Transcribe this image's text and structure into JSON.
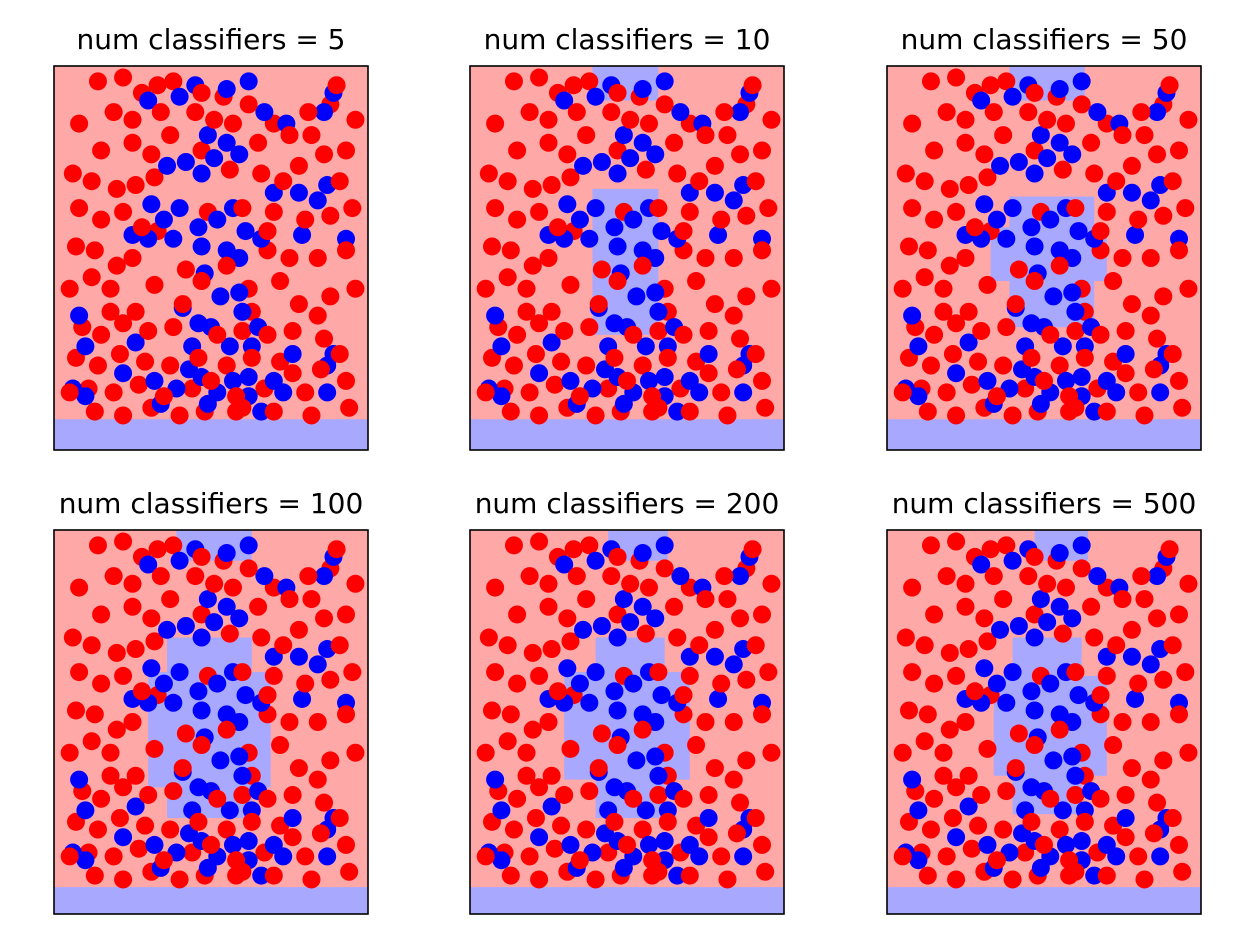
{
  "figure": {
    "background": "#ffffff",
    "colors": {
      "class_a_region": "#ffa8a8",
      "class_b_region": "#a8a8ff",
      "class_a_points": "#ff0000",
      "class_b_points": "#0000ff",
      "frame": "#000000"
    }
  },
  "chart_data": [
    {
      "type": "scatter",
      "title": "num classifiers = 5",
      "axes_visible": false,
      "grid": false,
      "legend": "none",
      "xlim": [
        0,
        1
      ],
      "ylim": [
        0,
        1
      ],
      "decision_regions": [
        {
          "class": "b",
          "x": [
            0.0,
            1.0
          ],
          "y": [
            0.0,
            0.08
          ]
        }
      ]
    },
    {
      "type": "scatter",
      "title": "num classifiers = 10",
      "axes_visible": false,
      "grid": false,
      "legend": "none",
      "xlim": [
        0,
        1
      ],
      "ylim": [
        0,
        1
      ],
      "decision_regions": [
        {
          "class": "b",
          "x": [
            0.0,
            1.0
          ],
          "y": [
            0.0,
            0.08
          ]
        },
        {
          "class": "b",
          "x": [
            0.39,
            0.6
          ],
          "y": [
            0.91,
            1.0
          ]
        },
        {
          "class": "b",
          "x": [
            0.39,
            0.6
          ],
          "y": [
            0.3,
            0.68
          ]
        }
      ]
    },
    {
      "type": "scatter",
      "title": "num classifiers = 50",
      "axes_visible": false,
      "grid": false,
      "legend": "none",
      "xlim": [
        0,
        1
      ],
      "ylim": [
        0,
        1
      ],
      "decision_regions": [
        {
          "class": "b",
          "x": [
            0.0,
            1.0
          ],
          "y": [
            0.0,
            0.08
          ]
        },
        {
          "class": "b",
          "x": [
            0.39,
            0.63
          ],
          "y": [
            0.91,
            1.0
          ]
        },
        {
          "class": "b",
          "x": [
            0.39,
            0.66
          ],
          "y": [
            0.32,
            0.66
          ]
        },
        {
          "class": "b",
          "x": [
            0.33,
            0.7
          ],
          "y": [
            0.44,
            0.58
          ]
        }
      ]
    },
    {
      "type": "scatter",
      "title": "num classifiers = 100",
      "axes_visible": false,
      "grid": false,
      "legend": "none",
      "xlim": [
        0,
        1
      ],
      "ylim": [
        0,
        1
      ],
      "decision_regions": [
        {
          "class": "b",
          "x": [
            0.0,
            1.0
          ],
          "y": [
            0.0,
            0.07
          ]
        },
        {
          "class": "b",
          "x": [
            0.39,
            0.63
          ],
          "y": [
            0.92,
            1.0
          ]
        },
        {
          "class": "b",
          "x": [
            0.3,
            0.69
          ],
          "y": [
            0.33,
            0.63
          ]
        },
        {
          "class": "b",
          "x": [
            0.36,
            0.63
          ],
          "y": [
            0.25,
            0.72
          ]
        }
      ]
    },
    {
      "type": "scatter",
      "title": "num classifiers = 200",
      "axes_visible": false,
      "grid": false,
      "legend": "none",
      "xlim": [
        0,
        1
      ],
      "ylim": [
        0,
        1
      ],
      "decision_regions": [
        {
          "class": "b",
          "x": [
            0.0,
            1.0
          ],
          "y": [
            0.0,
            0.07
          ]
        },
        {
          "class": "b",
          "x": [
            0.44,
            0.63
          ],
          "y": [
            0.92,
            1.0
          ]
        },
        {
          "class": "b",
          "x": [
            0.3,
            0.7
          ],
          "y": [
            0.35,
            0.63
          ]
        },
        {
          "class": "b",
          "x": [
            0.4,
            0.62
          ],
          "y": [
            0.25,
            0.72
          ]
        }
      ]
    },
    {
      "type": "scatter",
      "title": "num classifiers = 500",
      "axes_visible": false,
      "grid": false,
      "legend": "none",
      "xlim": [
        0,
        1
      ],
      "ylim": [
        0,
        1
      ],
      "decision_regions": [
        {
          "class": "b",
          "x": [
            0.0,
            1.0
          ],
          "y": [
            0.0,
            0.07
          ]
        },
        {
          "class": "b",
          "x": [
            0.47,
            0.64
          ],
          "y": [
            0.92,
            1.0
          ]
        },
        {
          "class": "b",
          "x": [
            0.34,
            0.7
          ],
          "y": [
            0.36,
            0.62
          ]
        },
        {
          "class": "b",
          "x": [
            0.4,
            0.62
          ],
          "y": [
            0.26,
            0.72
          ]
        }
      ]
    }
  ],
  "points": {
    "class_a": [
      [
        0.14,
        0.96
      ],
      [
        0.22,
        0.97
      ],
      [
        0.28,
        0.93
      ],
      [
        0.33,
        0.95
      ],
      [
        0.38,
        0.96
      ],
      [
        0.47,
        0.93
      ],
      [
        0.54,
        0.92
      ],
      [
        0.62,
        0.9
      ],
      [
        0.88,
        0.9
      ],
      [
        0.9,
        0.95
      ],
      [
        0.08,
        0.85
      ],
      [
        0.19,
        0.88
      ],
      [
        0.25,
        0.86
      ],
      [
        0.34,
        0.88
      ],
      [
        0.45,
        0.88
      ],
      [
        0.51,
        0.86
      ],
      [
        0.7,
        0.85
      ],
      [
        0.82,
        0.82
      ],
      [
        0.86,
        0.77
      ],
      [
        0.93,
        0.78
      ],
      [
        0.06,
        0.72
      ],
      [
        0.12,
        0.7
      ],
      [
        0.2,
        0.68
      ],
      [
        0.26,
        0.69
      ],
      [
        0.32,
        0.71
      ],
      [
        0.56,
        0.73
      ],
      [
        0.66,
        0.72
      ],
      [
        0.73,
        0.7
      ],
      [
        0.78,
        0.74
      ],
      [
        0.91,
        0.7
      ],
      [
        0.08,
        0.63
      ],
      [
        0.15,
        0.6
      ],
      [
        0.22,
        0.62
      ],
      [
        0.28,
        0.58
      ],
      [
        0.49,
        0.62
      ],
      [
        0.6,
        0.63
      ],
      [
        0.7,
        0.62
      ],
      [
        0.8,
        0.6
      ],
      [
        0.88,
        0.61
      ],
      [
        0.95,
        0.63
      ],
      [
        0.07,
        0.53
      ],
      [
        0.13,
        0.52
      ],
      [
        0.2,
        0.48
      ],
      [
        0.25,
        0.5
      ],
      [
        0.42,
        0.47
      ],
      [
        0.55,
        0.48
      ],
      [
        0.68,
        0.52
      ],
      [
        0.75,
        0.5
      ],
      [
        0.84,
        0.5
      ],
      [
        0.93,
        0.52
      ],
      [
        0.12,
        0.45
      ],
      [
        0.18,
        0.42
      ],
      [
        0.32,
        0.43
      ],
      [
        0.47,
        0.44
      ],
      [
        0.62,
        0.42
      ],
      [
        0.72,
        0.44
      ],
      [
        0.78,
        0.38
      ],
      [
        0.88,
        0.4
      ],
      [
        0.96,
        0.42
      ],
      [
        0.05,
        0.42
      ],
      [
        0.09,
        0.32
      ],
      [
        0.15,
        0.3
      ],
      [
        0.22,
        0.33
      ],
      [
        0.3,
        0.31
      ],
      [
        0.38,
        0.32
      ],
      [
        0.52,
        0.3
      ],
      [
        0.6,
        0.31
      ],
      [
        0.68,
        0.3
      ],
      [
        0.76,
        0.31
      ],
      [
        0.86,
        0.29
      ],
      [
        0.07,
        0.24
      ],
      [
        0.14,
        0.22
      ],
      [
        0.21,
        0.25
      ],
      [
        0.29,
        0.23
      ],
      [
        0.37,
        0.22
      ],
      [
        0.46,
        0.24
      ],
      [
        0.55,
        0.22
      ],
      [
        0.63,
        0.24
      ],
      [
        0.72,
        0.23
      ],
      [
        0.85,
        0.21
      ],
      [
        0.11,
        0.16
      ],
      [
        0.19,
        0.15
      ],
      [
        0.27,
        0.17
      ],
      [
        0.35,
        0.14
      ],
      [
        0.44,
        0.16
      ],
      [
        0.58,
        0.14
      ],
      [
        0.67,
        0.16
      ],
      [
        0.8,
        0.15
      ],
      [
        0.93,
        0.18
      ],
      [
        0.05,
        0.15
      ],
      [
        0.13,
        0.1
      ],
      [
        0.22,
        0.09
      ],
      [
        0.31,
        0.11
      ],
      [
        0.4,
        0.09
      ],
      [
        0.58,
        0.1
      ],
      [
        0.6,
        0.11
      ],
      [
        0.82,
        0.09
      ],
      [
        0.94,
        0.11
      ],
      [
        0.48,
        0.1
      ],
      [
        0.7,
        0.1
      ],
      [
        0.25,
        0.8
      ],
      [
        0.31,
        0.77
      ],
      [
        0.37,
        0.82
      ],
      [
        0.15,
        0.78
      ],
      [
        0.65,
        0.8
      ],
      [
        0.75,
        0.82
      ],
      [
        0.47,
        0.78
      ],
      [
        0.81,
        0.88
      ],
      [
        0.96,
        0.86
      ],
      [
        0.57,
        0.85
      ],
      [
        0.26,
        0.36
      ],
      [
        0.41,
        0.38
      ],
      [
        0.63,
        0.36
      ],
      [
        0.84,
        0.35
      ],
      [
        0.18,
        0.36
      ],
      [
        0.5,
        0.18
      ],
      [
        0.76,
        0.2
      ],
      [
        0.91,
        0.25
      ],
      [
        0.33,
        0.57
      ],
      [
        0.68,
        0.57
      ]
    ],
    "class_b": [
      [
        0.3,
        0.91
      ],
      [
        0.4,
        0.92
      ],
      [
        0.45,
        0.95
      ],
      [
        0.55,
        0.94
      ],
      [
        0.62,
        0.96
      ],
      [
        0.86,
        0.88
      ],
      [
        0.89,
        0.93
      ],
      [
        0.67,
        0.88
      ],
      [
        0.74,
        0.85
      ],
      [
        0.49,
        0.82
      ],
      [
        0.36,
        0.74
      ],
      [
        0.42,
        0.75
      ],
      [
        0.51,
        0.76
      ],
      [
        0.55,
        0.8
      ],
      [
        0.59,
        0.77
      ],
      [
        0.47,
        0.72
      ],
      [
        0.7,
        0.67
      ],
      [
        0.78,
        0.67
      ],
      [
        0.84,
        0.65
      ],
      [
        0.87,
        0.69
      ],
      [
        0.31,
        0.64
      ],
      [
        0.35,
        0.6
      ],
      [
        0.4,
        0.63
      ],
      [
        0.46,
        0.58
      ],
      [
        0.52,
        0.6
      ],
      [
        0.57,
        0.63
      ],
      [
        0.61,
        0.57
      ],
      [
        0.66,
        0.55
      ],
      [
        0.79,
        0.56
      ],
      [
        0.93,
        0.55
      ],
      [
        0.25,
        0.56
      ],
      [
        0.3,
        0.55
      ],
      [
        0.38,
        0.55
      ],
      [
        0.47,
        0.53
      ],
      [
        0.55,
        0.52
      ],
      [
        0.59,
        0.5
      ],
      [
        0.48,
        0.46
      ],
      [
        0.53,
        0.4
      ],
      [
        0.59,
        0.41
      ],
      [
        0.41,
        0.37
      ],
      [
        0.46,
        0.33
      ],
      [
        0.5,
        0.32
      ],
      [
        0.6,
        0.36
      ],
      [
        0.65,
        0.32
      ],
      [
        0.08,
        0.35
      ],
      [
        0.26,
        0.28
      ],
      [
        0.44,
        0.27
      ],
      [
        0.56,
        0.27
      ],
      [
        0.63,
        0.27
      ],
      [
        0.76,
        0.25
      ],
      [
        0.89,
        0.25
      ],
      [
        0.1,
        0.27
      ],
      [
        0.22,
        0.2
      ],
      [
        0.43,
        0.21
      ],
      [
        0.47,
        0.19
      ],
      [
        0.57,
        0.18
      ],
      [
        0.62,
        0.19
      ],
      [
        0.7,
        0.18
      ],
      [
        0.87,
        0.22
      ],
      [
        0.32,
        0.18
      ],
      [
        0.1,
        0.14
      ],
      [
        0.39,
        0.16
      ],
      [
        0.52,
        0.15
      ],
      [
        0.62,
        0.14
      ],
      [
        0.73,
        0.15
      ],
      [
        0.87,
        0.15
      ],
      [
        0.06,
        0.16
      ],
      [
        0.34,
        0.12
      ],
      [
        0.49,
        0.12
      ],
      [
        0.66,
        0.1
      ]
    ]
  }
}
